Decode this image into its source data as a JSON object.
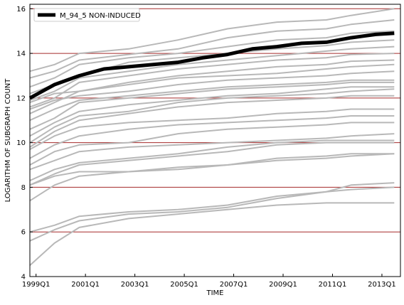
{
  "chart_data": {
    "type": "line",
    "title": "",
    "xlabel": "TIME",
    "ylabel": "LOGARITHM OF SUBGRAPH COUNT",
    "x_ticks": [
      "1999Q1",
      "2001Q1",
      "2003Q1",
      "2005Q1",
      "2007Q1",
      "2009Q1",
      "2011Q1",
      "2013Q1"
    ],
    "xlim": [
      0,
      60
    ],
    "ylim": [
      4,
      16.2
    ],
    "y_ticks": [
      4,
      6,
      8,
      10,
      12,
      14,
      16
    ],
    "grid": "horizontal, red",
    "legend": {
      "position": "top-left",
      "entries": [
        "M_94_5 NON-INDUCED"
      ]
    },
    "colors": {
      "highlight": "#000000",
      "background_series": "#b8b8b8",
      "grid": "#a52a2a"
    },
    "highlight_series": {
      "name": "M_94_5 NON-INDUCED",
      "x": [
        0,
        4,
        8,
        12,
        16,
        20,
        24,
        28,
        32,
        36,
        40,
        44,
        48,
        52,
        56,
        59
      ],
      "values": [
        12.0,
        12.6,
        13.0,
        13.3,
        13.4,
        13.5,
        13.6,
        13.8,
        13.95,
        14.2,
        14.3,
        14.45,
        14.5,
        14.7,
        14.85,
        14.9
      ]
    },
    "background_series": [
      {
        "x": [
          0,
          4,
          8,
          16,
          24,
          32,
          40,
          48,
          52,
          59
        ],
        "values": [
          13.2,
          13.5,
          14.0,
          14.2,
          14.6,
          15.1,
          15.4,
          15.5,
          15.7,
          16.0
        ]
      },
      {
        "x": [
          0,
          4,
          8,
          16,
          24,
          32,
          40,
          48,
          52,
          59
        ],
        "values": [
          12.9,
          13.2,
          13.7,
          13.95,
          14.2,
          14.7,
          15.0,
          15.1,
          15.3,
          15.5
        ]
      },
      {
        "x": [
          0,
          4,
          8,
          16,
          24,
          32,
          40,
          48,
          52,
          59
        ],
        "values": [
          12.5,
          12.9,
          13.5,
          13.8,
          14.0,
          14.3,
          14.6,
          14.7,
          14.9,
          15.0
        ]
      },
      {
        "x": [
          0,
          4,
          8,
          16,
          24,
          32,
          40,
          48,
          52,
          59
        ],
        "values": [
          12.2,
          12.6,
          13.0,
          13.6,
          13.8,
          14.0,
          14.2,
          14.35,
          14.5,
          14.6
        ]
      },
      {
        "x": [
          0,
          4,
          8,
          16,
          24,
          32,
          40,
          48,
          52,
          59
        ],
        "values": [
          11.9,
          12.3,
          12.9,
          13.2,
          13.5,
          13.7,
          13.9,
          14.1,
          14.2,
          14.3
        ]
      },
      {
        "x": [
          0,
          4,
          8,
          16,
          24,
          32,
          40,
          48,
          52,
          59
        ],
        "values": [
          11.6,
          12.0,
          12.7,
          13.0,
          13.3,
          13.5,
          13.7,
          13.8,
          13.95,
          14.0
        ]
      },
      {
        "x": [
          0,
          4,
          8,
          16,
          24,
          32,
          40,
          48,
          52,
          59
        ],
        "values": [
          11.3,
          11.8,
          12.3,
          12.7,
          13.0,
          13.2,
          13.4,
          13.5,
          13.65,
          13.7
        ]
      },
      {
        "x": [
          0,
          4,
          8,
          16,
          24,
          32,
          40,
          48,
          52,
          59
        ],
        "values": [
          11.8,
          12.2,
          12.3,
          12.6,
          12.9,
          13.0,
          13.1,
          13.3,
          13.4,
          13.5
        ]
      },
      {
        "x": [
          0,
          4,
          8,
          16,
          24,
          32,
          40,
          48,
          52,
          59
        ],
        "values": [
          11.5,
          11.9,
          12.1,
          12.3,
          12.6,
          12.8,
          12.9,
          13.0,
          13.1,
          13.2
        ]
      },
      {
        "x": [
          0,
          4,
          8,
          16,
          24,
          32,
          40,
          48,
          52,
          59
        ],
        "values": [
          11.0,
          11.5,
          11.9,
          12.1,
          12.3,
          12.5,
          12.6,
          12.7,
          12.8,
          12.8
        ]
      },
      {
        "x": [
          0,
          4,
          8,
          16,
          24,
          32,
          40,
          48,
          52,
          59
        ],
        "values": [
          10.6,
          11.1,
          11.8,
          12.0,
          12.2,
          12.4,
          12.5,
          12.6,
          12.7,
          12.7
        ]
      },
      {
        "x": [
          0,
          4,
          8,
          16,
          24,
          32,
          40,
          48,
          52,
          59
        ],
        "values": [
          10.3,
          10.9,
          11.4,
          11.7,
          11.9,
          12.1,
          12.2,
          12.4,
          12.5,
          12.5
        ]
      },
      {
        "x": [
          0,
          4,
          8,
          16,
          24,
          32,
          40,
          48,
          52,
          59
        ],
        "values": [
          10.0,
          10.7,
          11.2,
          11.4,
          11.8,
          12.0,
          12.1,
          12.2,
          12.3,
          12.4
        ]
      },
      {
        "x": [
          0,
          4,
          8,
          16,
          24,
          32,
          40,
          48,
          52,
          59
        ],
        "values": [
          9.8,
          10.5,
          11.0,
          11.3,
          11.6,
          11.8,
          11.9,
          12.0,
          12.1,
          12.1
        ]
      },
      {
        "x": [
          0,
          4,
          8,
          16,
          24,
          32,
          40,
          48,
          52,
          59
        ],
        "values": [
          9.7,
          10.3,
          10.7,
          10.9,
          11.0,
          11.1,
          11.3,
          11.4,
          11.5,
          11.5
        ]
      },
      {
        "x": [
          0,
          4,
          8,
          16,
          24,
          32,
          40,
          48,
          52,
          59
        ],
        "values": [
          9.3,
          9.9,
          10.3,
          10.6,
          10.8,
          10.9,
          11.0,
          11.1,
          11.2,
          11.2
        ]
      },
      {
        "x": [
          0,
          4,
          8,
          16,
          24,
          32,
          40,
          48,
          52,
          59
        ],
        "values": [
          9.0,
          9.6,
          9.9,
          10.0,
          10.4,
          10.6,
          10.7,
          10.8,
          10.9,
          10.9
        ]
      },
      {
        "x": [
          0,
          4,
          8,
          16,
          24,
          32,
          40,
          48,
          52,
          59
        ],
        "values": [
          8.8,
          9.2,
          9.6,
          9.8,
          9.9,
          10.0,
          10.1,
          10.2,
          10.3,
          10.4
        ]
      },
      {
        "x": [
          0,
          4,
          8,
          16,
          24,
          32,
          40,
          48,
          52,
          59
        ],
        "values": [
          8.3,
          8.8,
          9.1,
          9.3,
          9.5,
          9.8,
          10.0,
          10.1,
          10.1,
          10.1
        ]
      },
      {
        "x": [
          0,
          4,
          8,
          16,
          24,
          32,
          40,
          48,
          52,
          59
        ],
        "values": [
          8.1,
          8.6,
          9.0,
          9.2,
          9.4,
          9.6,
          9.9,
          10.0,
          10.0,
          10.0
        ]
      },
      {
        "x": [
          0,
          4,
          8,
          16,
          24,
          32,
          40,
          48,
          52,
          59
        ],
        "values": [
          8.1,
          8.5,
          8.7,
          8.7,
          8.8,
          9.0,
          9.3,
          9.4,
          9.5,
          9.5
        ]
      },
      {
        "x": [
          0,
          4,
          8,
          16,
          24,
          32,
          40,
          48,
          52,
          59
        ],
        "values": [
          7.4,
          8.1,
          8.5,
          8.7,
          8.9,
          9.0,
          9.2,
          9.3,
          9.4,
          9.5
        ]
      },
      {
        "x": [
          0,
          4,
          8,
          16,
          24,
          32,
          40,
          48,
          52,
          59
        ],
        "values": [
          6.0,
          6.3,
          6.7,
          6.9,
          7.0,
          7.2,
          7.6,
          7.8,
          8.1,
          8.2
        ]
      },
      {
        "x": [
          0,
          4,
          8,
          16,
          24,
          32,
          40,
          48,
          52,
          59
        ],
        "values": [
          5.6,
          6.1,
          6.5,
          6.8,
          6.9,
          7.1,
          7.5,
          7.8,
          7.9,
          8.0
        ]
      },
      {
        "x": [
          0,
          4,
          8,
          16,
          24,
          32,
          40,
          48,
          52,
          59
        ],
        "values": [
          4.5,
          5.5,
          6.2,
          6.6,
          6.8,
          7.0,
          7.2,
          7.3,
          7.3,
          7.3
        ]
      }
    ]
  }
}
